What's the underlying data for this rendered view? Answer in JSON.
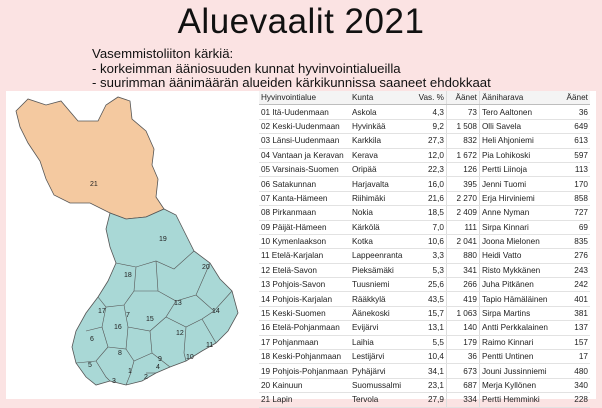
{
  "title": "Aluevaalit 2021",
  "subtitle": [
    "Vasemmistoliiton kärkiä:",
    "- korkeimman ääniosuuden kunnat hyvinvointialueilla",
    "- suurimman äänimäärän alueiden kärkikunnissa saaneet ehdokkaat"
  ],
  "colors": {
    "background": "#fbe3e3",
    "lapland": "#f4c9a0",
    "regions": "#a9d8d6",
    "border": "#555555"
  },
  "map_labels": [
    "21",
    "19",
    "20",
    "18",
    "17",
    "13",
    "14",
    "16",
    "12",
    "7",
    "15",
    "9",
    "10",
    "8",
    "11",
    "6",
    "5",
    "1",
    "2",
    "3",
    "4"
  ],
  "table": {
    "headers": [
      "Hyvinvointialue",
      "Kunta",
      "Vas. %",
      "Äänet",
      "Ääniharava",
      "Äänet"
    ],
    "rows": [
      [
        "01 Itä-Uudenmaan",
        "Askola",
        "4,3",
        "73",
        "Tero Aaltonen",
        "36"
      ],
      [
        "02 Keski-Uudenmaan",
        "Hyvinkää",
        "9,2",
        "1 508",
        "Olli Savela",
        "649"
      ],
      [
        "03 Länsi-Uudenmaan",
        "Karkkila",
        "27,3",
        "832",
        "Heli Ahjoniemi",
        "613"
      ],
      [
        "04 Vantaan ja Keravan",
        "Kerava",
        "12,0",
        "1 672",
        "Pia Lohikoski",
        "597"
      ],
      [
        "05 Varsinais-Suomen",
        "Oripää",
        "22,3",
        "126",
        "Pertti Liinoja",
        "113"
      ],
      [
        "06 Satakunnan",
        "Harjavalta",
        "16,0",
        "395",
        "Jenni Tuomi",
        "170"
      ],
      [
        "07 Kanta-Hämeen",
        "Riihimäki",
        "21,6",
        "2 270",
        "Erja Hirviniemi",
        "858"
      ],
      [
        "08 Pirkanmaan",
        "Nokia",
        "18,5",
        "2 409",
        "Anne Nyman",
        "727"
      ],
      [
        "09 Päijät-Hämeen",
        "Kärkölä",
        "7,0",
        "111",
        "Sirpa Kinnari",
        "69"
      ],
      [
        "10 Kymenlaakson",
        "Kotka",
        "10,6",
        "2 041",
        "Joona Mielonen",
        "835"
      ],
      [
        "11 Etelä-Karjalan",
        "Lappeenranta",
        "3,3",
        "880",
        "Heidi Vatto",
        "276"
      ],
      [
        "12 Etelä-Savon",
        "Pieksämäki",
        "5,3",
        "341",
        "Risto Mykkänen",
        "243"
      ],
      [
        "13 Pohjois-Savon",
        "Tuusniemi",
        "25,6",
        "266",
        "Juha Pitkänen",
        "242"
      ],
      [
        "14 Pohjois-Karjalan",
        "Rääkkylä",
        "43,5",
        "419",
        "Tapio Hämäläinen",
        "401"
      ],
      [
        "15 Keski-Suomen",
        "Äänekoski",
        "15,7",
        "1 063",
        "Sirpa Martins",
        "381"
      ],
      [
        "16 Etelä-Pohjanmaan",
        "Evijärvi",
        "13,1",
        "140",
        "Antti Perkkalainen",
        "137"
      ],
      [
        "17 Pohjanmaan",
        "Laihia",
        "5,5",
        "179",
        "Raimo Kinnari",
        "157"
      ],
      [
        "18 Keski-Pohjanmaan",
        "Lestijärvi",
        "10,4",
        "36",
        "Pentti Untinen",
        "17"
      ],
      [
        "19 Pohjois-Pohjanmaan",
        "Pyhäjärvi",
        "34,1",
        "673",
        "Jouni Jussinniemi",
        "480"
      ],
      [
        "20 Kainuun",
        "Suomussalmi",
        "23,1",
        "687",
        "Merja Kyllönen",
        "340"
      ],
      [
        "21 Lapin",
        "Tervola",
        "27,9",
        "334",
        "Pertti Hemminki",
        "228"
      ]
    ]
  }
}
